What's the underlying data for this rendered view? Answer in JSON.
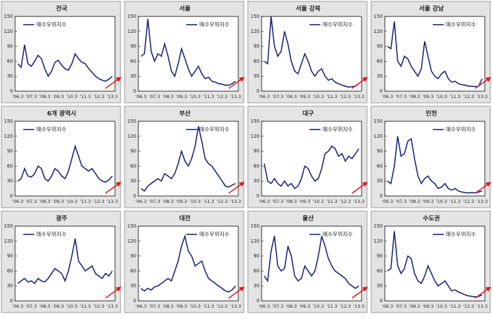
{
  "chart_data": [
    {
      "type": "line",
      "title": "전국",
      "categories": [
        "'06.3",
        null,
        null,
        null,
        "'07.3",
        null,
        null,
        null,
        "'08.3",
        null,
        null,
        null,
        "'09.3",
        null,
        null,
        null,
        "'10.3",
        null,
        null,
        null,
        "'11.3",
        null,
        null,
        null,
        "'12.3",
        null,
        null,
        null,
        "'13.3"
      ],
      "series": [
        {
          "name": "매수우위지수",
          "color": "#1a237e",
          "values": [
            55,
            48,
            93,
            55,
            50,
            60,
            72,
            65,
            45,
            30,
            40,
            58,
            62,
            52,
            45,
            42,
            55,
            75,
            65,
            58,
            55,
            45,
            38,
            30,
            25,
            22,
            20,
            24,
            30
          ]
        }
      ],
      "ylim": [
        0,
        150
      ],
      "yticks": [
        0,
        30,
        60,
        90,
        120,
        150
      ]
    },
    {
      "type": "line",
      "title": "서울",
      "categories": [
        "'06.3",
        null,
        null,
        null,
        "'07.3",
        null,
        null,
        null,
        "'08.3",
        null,
        null,
        null,
        "'09.3",
        null,
        null,
        null,
        "'10.3",
        null,
        null,
        null,
        "'11.3",
        null,
        null,
        null,
        "'12.3",
        null,
        null,
        null,
        "'13.3"
      ],
      "series": [
        {
          "name": "매수우위지수",
          "color": "#1a237e",
          "values": [
            70,
            75,
            145,
            80,
            60,
            75,
            70,
            95,
            70,
            40,
            30,
            55,
            85,
            65,
            45,
            30,
            40,
            50,
            35,
            25,
            28,
            20,
            18,
            15,
            14,
            12,
            12,
            15,
            20
          ]
        }
      ],
      "ylim": [
        0,
        150
      ],
      "yticks": [
        0,
        30,
        60,
        90,
        120,
        150
      ]
    },
    {
      "type": "line",
      "title": "서울 강북",
      "categories": [
        "'06.3",
        null,
        null,
        null,
        "'07.3",
        null,
        null,
        null,
        "'08.3",
        null,
        null,
        null,
        "'09.3",
        null,
        null,
        null,
        "'10.3",
        null,
        null,
        null,
        "'11.3",
        null,
        null,
        null,
        "'12.3",
        null,
        null,
        null,
        "'13.3"
      ],
      "series": [
        {
          "name": "매수우위지수",
          "color": "#1a237e",
          "values": [
            60,
            55,
            150,
            90,
            70,
            80,
            120,
            95,
            60,
            40,
            35,
            55,
            75,
            60,
            40,
            30,
            40,
            45,
            30,
            22,
            25,
            18,
            15,
            12,
            10,
            8,
            9,
            10,
            15
          ]
        }
      ],
      "ylim": [
        0,
        150
      ],
      "yticks": [
        0,
        30,
        60,
        90,
        120,
        150
      ]
    },
    {
      "type": "line",
      "title": "서울 강남",
      "categories": [
        "'06.3",
        null,
        null,
        null,
        "'07.3",
        null,
        null,
        null,
        "'08.3",
        null,
        null,
        null,
        "'09.3",
        null,
        null,
        null,
        "'10.3",
        null,
        null,
        null,
        "'11.3",
        null,
        null,
        null,
        "'12.3",
        null,
        null,
        null,
        "'13.3"
      ],
      "series": [
        {
          "name": "매수우위지수",
          "color": "#1a237e",
          "values": [
            90,
            85,
            140,
            60,
            50,
            70,
            65,
            50,
            40,
            30,
            45,
            100,
            70,
            40,
            30,
            25,
            35,
            40,
            25,
            18,
            20,
            15,
            13,
            12,
            10,
            10,
            9,
            10,
            25
          ]
        }
      ],
      "ylim": [
        0,
        150
      ],
      "yticks": [
        0,
        30,
        60,
        90,
        120,
        150
      ]
    },
    {
      "type": "line",
      "title": "6개 광역시",
      "categories": [
        "'06.3",
        null,
        null,
        null,
        "'07.3",
        null,
        null,
        null,
        "'08.3",
        null,
        null,
        null,
        "'09.3",
        null,
        null,
        null,
        "'10.3",
        null,
        null,
        null,
        "'11.3",
        null,
        null,
        null,
        "'12.3",
        null,
        null,
        null,
        "'13.3"
      ],
      "series": [
        {
          "name": "매수우위지수",
          "color": "#1a237e",
          "values": [
            30,
            35,
            55,
            40,
            38,
            45,
            60,
            55,
            35,
            30,
            40,
            55,
            50,
            40,
            35,
            50,
            75,
            100,
            80,
            60,
            55,
            50,
            55,
            45,
            35,
            30,
            28,
            32,
            40
          ]
        }
      ],
      "ylim": [
        0,
        150
      ],
      "yticks": [
        0,
        30,
        60,
        90,
        120,
        150
      ]
    },
    {
      "type": "line",
      "title": "부산",
      "categories": [
        "'06.3",
        null,
        null,
        null,
        "'07.3",
        null,
        null,
        null,
        "'08.3",
        null,
        null,
        null,
        "'09.3",
        null,
        null,
        null,
        "'10.3",
        null,
        null,
        null,
        "'11.3",
        null,
        null,
        null,
        "'12.3",
        null,
        null,
        null,
        "'13.3"
      ],
      "series": [
        {
          "name": "매수우위지수",
          "color": "#1a237e",
          "values": [
            15,
            10,
            20,
            25,
            30,
            35,
            30,
            45,
            40,
            35,
            45,
            65,
            90,
            70,
            60,
            75,
            100,
            140,
            110,
            75,
            65,
            60,
            50,
            40,
            30,
            20,
            18,
            22,
            25
          ]
        }
      ],
      "ylim": [
        0,
        150
      ],
      "yticks": [
        0,
        30,
        60,
        90,
        120,
        150
      ]
    },
    {
      "type": "line",
      "title": "대구",
      "categories": [
        "'06.3",
        null,
        null,
        null,
        "'07.3",
        null,
        null,
        null,
        "'08.3",
        null,
        null,
        null,
        "'09.3",
        null,
        null,
        null,
        "'10.3",
        null,
        null,
        null,
        "'11.3",
        null,
        null,
        null,
        "'12.3",
        null,
        null,
        null,
        "'13.3"
      ],
      "series": [
        {
          "name": "매수우위지수",
          "color": "#1a237e",
          "values": [
            65,
            30,
            25,
            35,
            25,
            20,
            30,
            20,
            25,
            15,
            20,
            35,
            60,
            55,
            40,
            30,
            35,
            55,
            85,
            90,
            100,
            95,
            80,
            85,
            70,
            80,
            75,
            85,
            95
          ]
        }
      ],
      "ylim": [
        0,
        150
      ],
      "yticks": [
        0,
        30,
        60,
        90,
        120,
        150
      ]
    },
    {
      "type": "line",
      "title": "인천",
      "categories": [
        "'06.3",
        null,
        null,
        null,
        "'07.3",
        null,
        null,
        null,
        "'08.3",
        null,
        null,
        null,
        "'09.3",
        null,
        null,
        null,
        "'10.3",
        null,
        null,
        null,
        "'11.3",
        null,
        null,
        null,
        "'12.3",
        null,
        null,
        null,
        "'13.3"
      ],
      "series": [
        {
          "name": "매수우위지수",
          "color": "#1a237e",
          "values": [
            30,
            25,
            60,
            120,
            80,
            85,
            110,
            115,
            75,
            40,
            25,
            35,
            40,
            30,
            25,
            15,
            18,
            25,
            15,
            12,
            15,
            10,
            8,
            7,
            6,
            7,
            6,
            8,
            10
          ]
        }
      ],
      "ylim": [
        0,
        150
      ],
      "yticks": [
        0,
        30,
        60,
        90,
        120,
        150
      ]
    },
    {
      "type": "line",
      "title": "광주",
      "categories": [
        "'06.3",
        null,
        null,
        null,
        "'07.3",
        null,
        null,
        null,
        "'08.3",
        null,
        null,
        null,
        "'09.3",
        null,
        null,
        null,
        "'10.3",
        null,
        null,
        null,
        "'11.3",
        null,
        null,
        null,
        "'12.3",
        null,
        null,
        null,
        "'13.3"
      ],
      "series": [
        {
          "name": "매수우위지수",
          "color": "#1a237e",
          "values": [
            35,
            40,
            45,
            38,
            40,
            35,
            45,
            40,
            38,
            45,
            55,
            65,
            60,
            55,
            40,
            60,
            90,
            125,
            80,
            70,
            60,
            65,
            70,
            55,
            50,
            45,
            55,
            50,
            60
          ]
        }
      ],
      "ylim": [
        0,
        150
      ],
      "yticks": [
        0,
        30,
        60,
        90,
        120,
        150
      ]
    },
    {
      "type": "line",
      "title": "대전",
      "categories": [
        "'06.3",
        null,
        null,
        null,
        "'07.3",
        null,
        null,
        null,
        "'08.3",
        null,
        null,
        null,
        "'09.3",
        null,
        null,
        null,
        "'10.3",
        null,
        null,
        null,
        "'11.3",
        null,
        null,
        null,
        "'12.3",
        null,
        null,
        null,
        "'13.3"
      ],
      "series": [
        {
          "name": "매수우위지수",
          "color": "#1a237e",
          "values": [
            25,
            20,
            25,
            22,
            28,
            30,
            35,
            40,
            45,
            40,
            60,
            80,
            110,
            130,
            100,
            90,
            70,
            75,
            80,
            60,
            45,
            40,
            35,
            30,
            25,
            20,
            18,
            22,
            30
          ]
        }
      ],
      "ylim": [
        0,
        150
      ],
      "yticks": [
        0,
        30,
        60,
        90,
        120,
        150
      ]
    },
    {
      "type": "line",
      "title": "울산",
      "categories": [
        "'06.3",
        null,
        null,
        null,
        "'07.3",
        null,
        null,
        null,
        "'08.3",
        null,
        null,
        null,
        "'09.3",
        null,
        null,
        null,
        "'10.3",
        null,
        null,
        null,
        "'11.3",
        null,
        null,
        null,
        "'12.3",
        null,
        null,
        null,
        "'13.3"
      ],
      "series": [
        {
          "name": "매수우위지수",
          "color": "#1a237e",
          "values": [
            50,
            40,
            100,
            130,
            70,
            60,
            65,
            110,
            90,
            50,
            40,
            45,
            70,
            60,
            50,
            60,
            90,
            130,
            110,
            85,
            70,
            60,
            55,
            50,
            45,
            35,
            30,
            25,
            30
          ]
        }
      ],
      "ylim": [
        0,
        150
      ],
      "yticks": [
        0,
        30,
        60,
        90,
        120,
        150
      ]
    },
    {
      "type": "line",
      "title": "수도권",
      "categories": [
        "'06.3",
        null,
        null,
        null,
        "'07.3",
        null,
        null,
        null,
        "'08.3",
        null,
        null,
        null,
        "'09.3",
        null,
        null,
        null,
        "'10.3",
        null,
        null,
        null,
        "'11.3",
        null,
        null,
        null,
        "'12.3",
        null,
        null,
        null,
        "'13.3"
      ],
      "series": [
        {
          "name": "매수우위지수",
          "color": "#1a237e",
          "values": [
            60,
            65,
            140,
            70,
            55,
            65,
            90,
            85,
            55,
            40,
            35,
            50,
            70,
            55,
            40,
            30,
            35,
            40,
            30,
            20,
            22,
            18,
            15,
            12,
            10,
            9,
            8,
            9,
            12
          ]
        }
      ],
      "ylim": [
        0,
        150
      ],
      "yticks": [
        0,
        30,
        60,
        90,
        120,
        150
      ]
    }
  ]
}
